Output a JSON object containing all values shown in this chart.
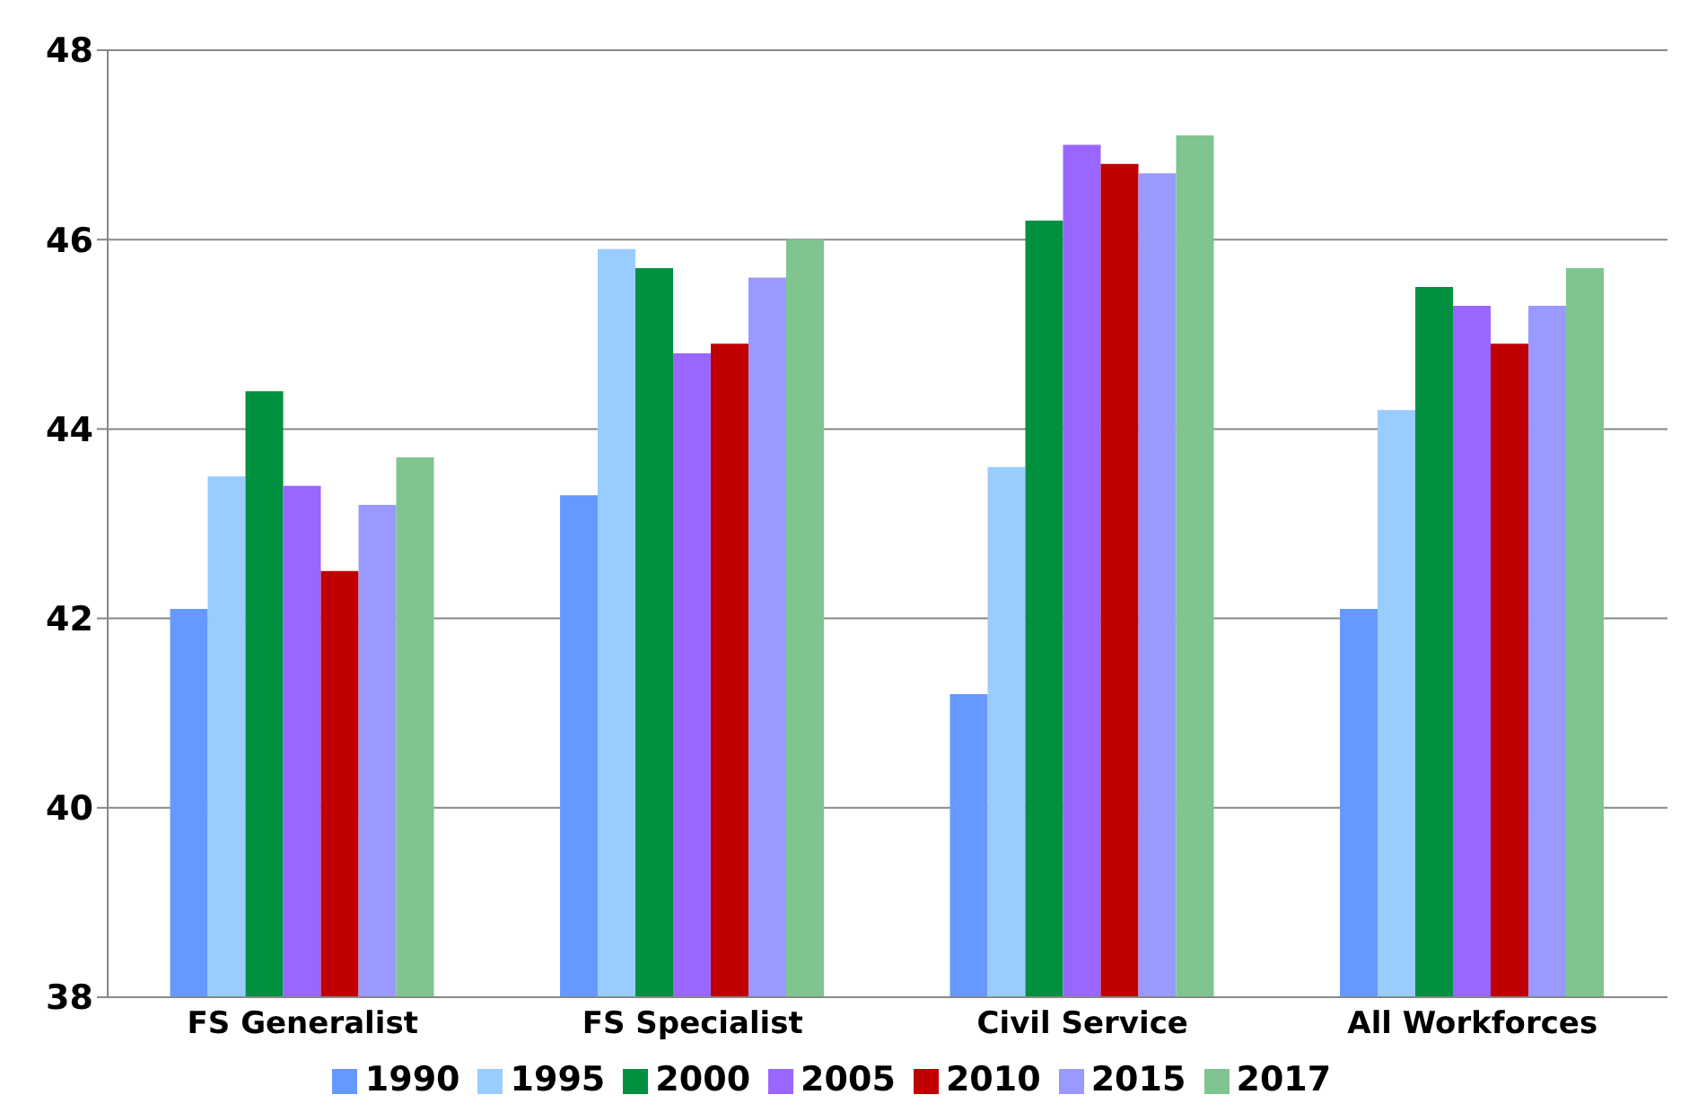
{
  "chart_data": {
    "type": "bar",
    "categories": [
      "FS Generalist",
      "FS Specialist",
      "Civil Service",
      "All Workforces"
    ],
    "series": [
      {
        "name": "1990",
        "color": "#6699ff",
        "values": [
          42.1,
          43.3,
          41.2,
          42.1
        ]
      },
      {
        "name": "1995",
        "color": "#99ccff",
        "values": [
          43.5,
          45.9,
          43.6,
          44.2
        ]
      },
      {
        "name": "2000",
        "color": "#009040",
        "values": [
          44.4,
          45.7,
          46.2,
          45.5
        ]
      },
      {
        "name": "2005",
        "color": "#9966ff",
        "values": [
          43.4,
          44.8,
          47.0,
          45.3
        ]
      },
      {
        "name": "2010",
        "color": "#c00000",
        "values": [
          42.5,
          44.9,
          46.8,
          44.9
        ]
      },
      {
        "name": "2015",
        "color": "#9999ff",
        "values": [
          43.2,
          45.6,
          46.7,
          45.3
        ]
      },
      {
        "name": "2017",
        "color": "#80c490",
        "values": [
          43.7,
          46.0,
          47.1,
          45.7
        ]
      }
    ],
    "ylim": [
      38,
      48
    ],
    "yticks": [
      38,
      40,
      42,
      44,
      46,
      48
    ],
    "grid": "y",
    "legend": "bottom"
  }
}
